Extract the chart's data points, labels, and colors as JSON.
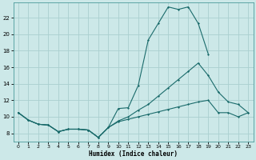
{
  "xlabel": "Humidex (Indice chaleur)",
  "xlim": [
    -0.5,
    23.5
  ],
  "ylim": [
    7.0,
    23.8
  ],
  "yticks": [
    8,
    10,
    12,
    14,
    16,
    18,
    20,
    22
  ],
  "xticks": [
    0,
    1,
    2,
    3,
    4,
    5,
    6,
    7,
    8,
    9,
    10,
    11,
    12,
    13,
    14,
    15,
    16,
    17,
    18,
    19,
    20,
    21,
    22,
    23
  ],
  "background_color": "#cce8e8",
  "grid_color": "#aad0d0",
  "line_color": "#1a6b6b",
  "line1_y": [
    10.5,
    9.6,
    9.1,
    9.0,
    8.2,
    8.5,
    8.5,
    8.4,
    7.5,
    8.7,
    11.0,
    11.1,
    13.8,
    19.3,
    21.3,
    23.3,
    23.0,
    23.3,
    21.3,
    17.6,
    null,
    null,
    null,
    null
  ],
  "line2_y": [
    10.5,
    9.6,
    9.1,
    9.0,
    8.2,
    8.5,
    8.5,
    8.4,
    7.5,
    8.7,
    9.5,
    10.0,
    10.8,
    11.5,
    12.5,
    13.5,
    14.5,
    15.5,
    16.5,
    15.0,
    13.0,
    11.8,
    11.5,
    10.5
  ],
  "line3_y": [
    10.5,
    9.6,
    9.1,
    9.0,
    8.2,
    8.5,
    8.5,
    8.4,
    7.5,
    8.7,
    9.4,
    9.7,
    10.0,
    10.3,
    10.6,
    10.9,
    11.2,
    11.5,
    11.8,
    12.0,
    10.5,
    10.5,
    10.0,
    10.5
  ]
}
